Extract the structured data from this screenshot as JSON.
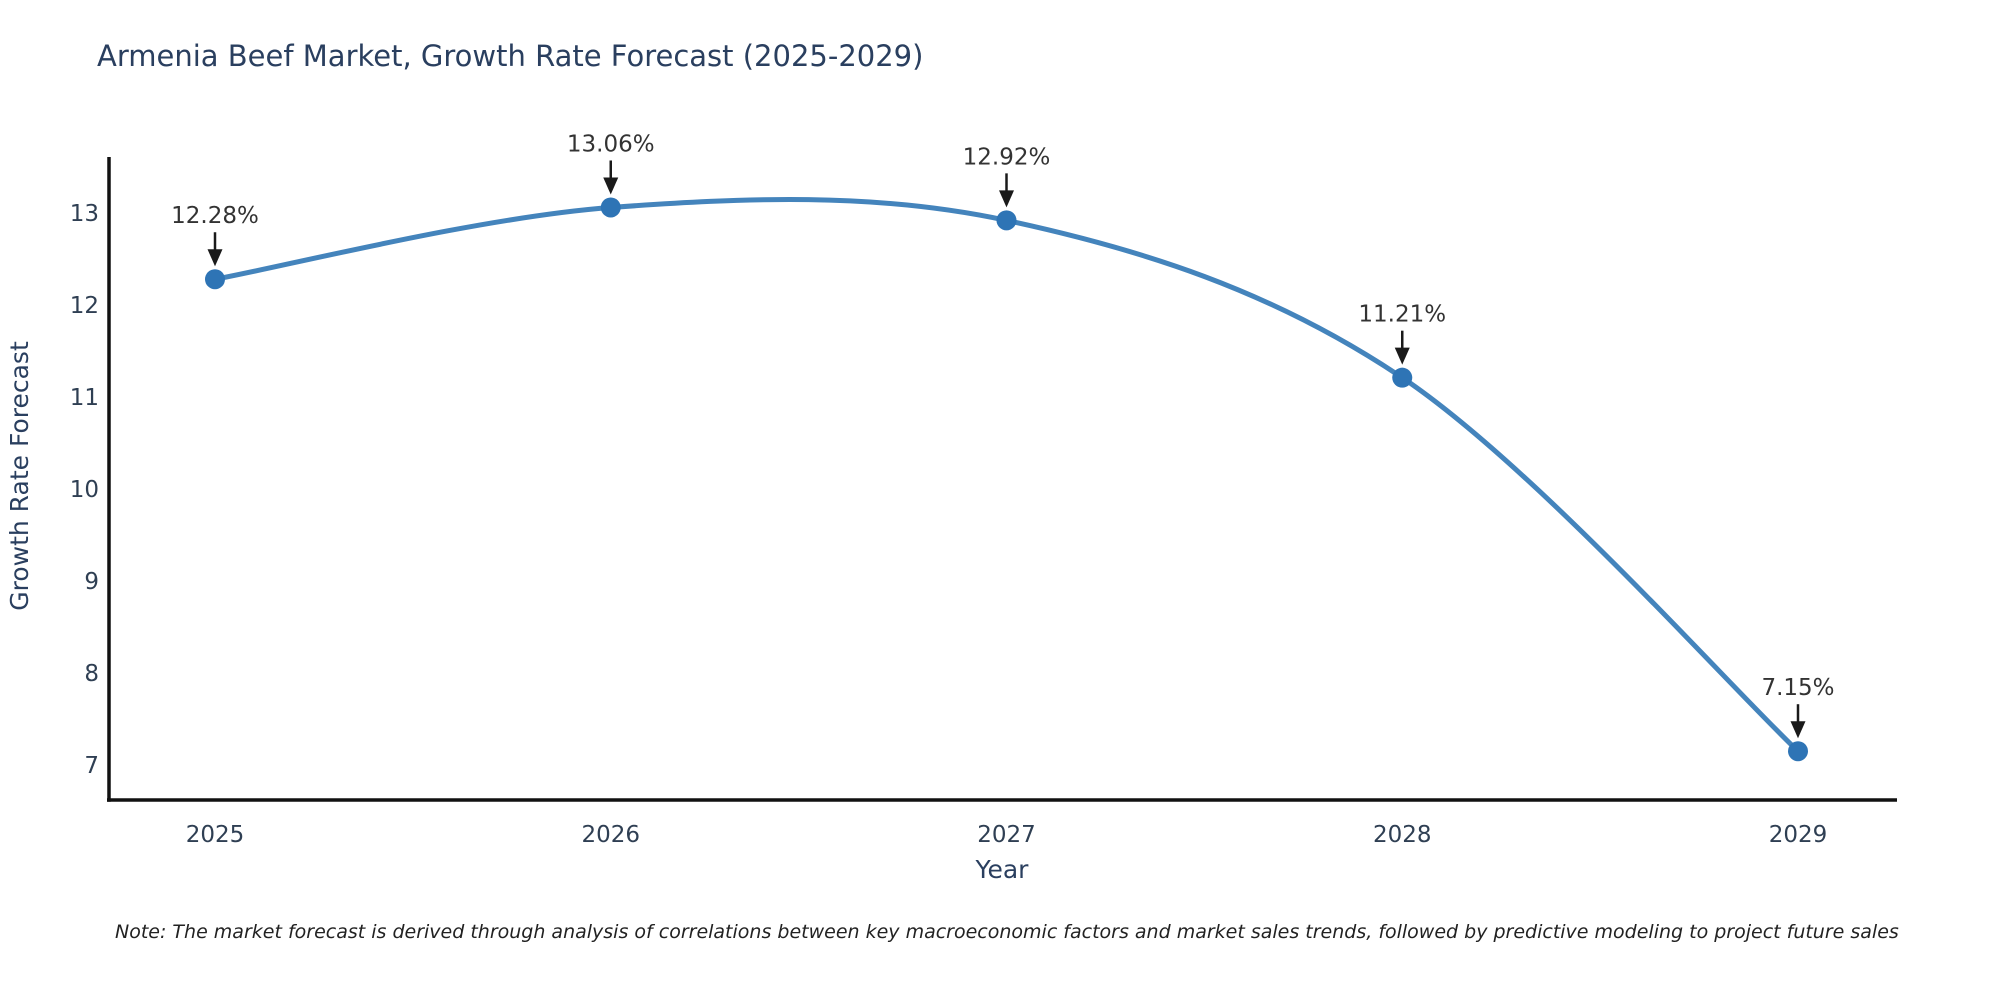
{
  "chart_data": {
    "type": "line",
    "title": "Armenia Beef Market, Growth Rate Forecast (2025-2029)",
    "xlabel": "Year",
    "ylabel": "Growth Rate Forecast",
    "x": [
      2025,
      2026,
      2027,
      2028,
      2029
    ],
    "values": [
      12.28,
      13.06,
      12.92,
      11.21,
      7.15
    ],
    "point_labels": [
      "12.28%",
      "13.06%",
      "12.92%",
      "11.21%",
      "7.15%"
    ],
    "y_ticks": [
      7,
      8,
      9,
      10,
      11,
      12,
      13
    ],
    "ylim": [
      6.6,
      13.6
    ],
    "xlim": [
      2024.73,
      2029.25
    ],
    "grid": false,
    "legend_position": "none",
    "line_shape": "spline",
    "annotation_style": "value labels above points with downward arrows",
    "colors": {
      "line": "#4484bc",
      "marker": "#2e74b5",
      "axis": "#111111",
      "title_text": "#2a3f5f",
      "tick_text": "#2f3f53",
      "annotation_text": "#333333",
      "annotation_arrow": "#1a1a1a",
      "background": "#ffffff"
    },
    "note": "Note: The market forecast is derived through analysis of correlations between key macroeconomic factors and market sales trends, followed by predictive modeling to project future sales"
  }
}
